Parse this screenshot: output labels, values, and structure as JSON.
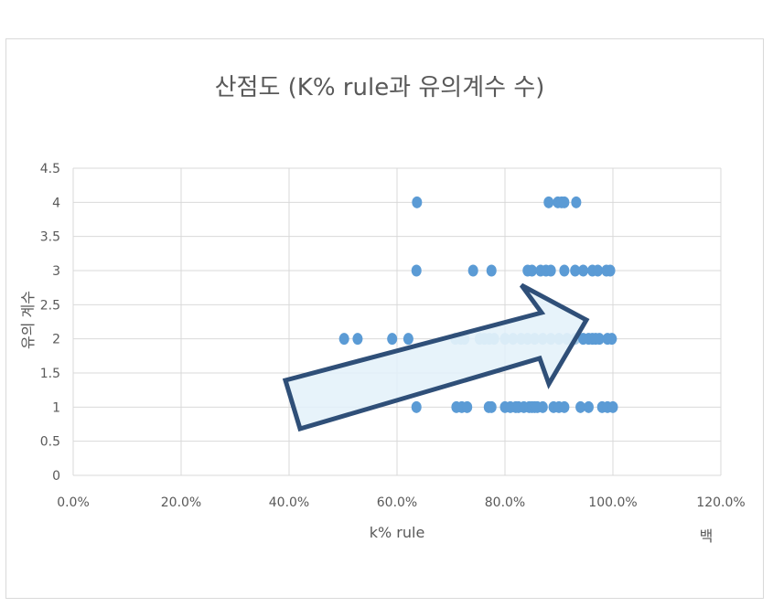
{
  "chart_data": {
    "type": "scatter",
    "title": "산점도 (K% rule과 유의계수 수)",
    "xlabel": "k% rule",
    "ylabel": "유의 계수",
    "extra_label": "백",
    "xlim": [
      0,
      1.2
    ],
    "ylim": [
      0,
      4.5
    ],
    "x_ticks": [
      "0.0%",
      "20.0%",
      "40.0%",
      "60.0%",
      "80.0%",
      "100.0%",
      "120.0%"
    ],
    "y_ticks": [
      "0",
      "0.5",
      "1",
      "1.5",
      "2",
      "2.5",
      "3",
      "3.5",
      "4",
      "4.5"
    ],
    "grid": true,
    "colors": {
      "point": "#5b9bd5",
      "point_light": "#a9cde9",
      "arrow_fill": "#e3f1f9",
      "arrow_stroke": "#2f4f78"
    },
    "series": [
      {
        "values": [
          {
            "x": 0.637,
            "y": 4
          },
          {
            "x": 0.881,
            "y": 4
          },
          {
            "x": 0.898,
            "y": 4
          },
          {
            "x": 0.905,
            "y": 4
          },
          {
            "x": 0.91,
            "y": 4
          },
          {
            "x": 0.932,
            "y": 4
          },
          {
            "x": 0.636,
            "y": 3
          },
          {
            "x": 0.741,
            "y": 3
          },
          {
            "x": 0.775,
            "y": 3
          },
          {
            "x": 0.842,
            "y": 3
          },
          {
            "x": 0.85,
            "y": 3
          },
          {
            "x": 0.866,
            "y": 3
          },
          {
            "x": 0.876,
            "y": 3
          },
          {
            "x": 0.885,
            "y": 3
          },
          {
            "x": 0.91,
            "y": 3
          },
          {
            "x": 0.93,
            "y": 3
          },
          {
            "x": 0.945,
            "y": 3
          },
          {
            "x": 0.962,
            "y": 3
          },
          {
            "x": 0.972,
            "y": 3
          },
          {
            "x": 0.988,
            "y": 3
          },
          {
            "x": 0.995,
            "y": 3
          },
          {
            "x": 0.502,
            "y": 2
          },
          {
            "x": 0.527,
            "y": 2
          },
          {
            "x": 0.591,
            "y": 2
          },
          {
            "x": 0.621,
            "y": 2
          },
          {
            "x": 0.708,
            "y": 2
          },
          {
            "x": 0.718,
            "y": 2
          },
          {
            "x": 0.725,
            "y": 2
          },
          {
            "x": 0.753,
            "y": 2
          },
          {
            "x": 0.762,
            "y": 2
          },
          {
            "x": 0.771,
            "y": 2
          },
          {
            "x": 0.78,
            "y": 2
          },
          {
            "x": 0.8,
            "y": 2
          },
          {
            "x": 0.815,
            "y": 2
          },
          {
            "x": 0.83,
            "y": 2
          },
          {
            "x": 0.842,
            "y": 2
          },
          {
            "x": 0.855,
            "y": 2
          },
          {
            "x": 0.87,
            "y": 2
          },
          {
            "x": 0.885,
            "y": 2
          },
          {
            "x": 0.9,
            "y": 2
          },
          {
            "x": 0.915,
            "y": 2
          },
          {
            "x": 0.93,
            "y": 2
          },
          {
            "x": 0.945,
            "y": 2
          },
          {
            "x": 0.955,
            "y": 2
          },
          {
            "x": 0.962,
            "y": 2
          },
          {
            "x": 0.968,
            "y": 2
          },
          {
            "x": 0.975,
            "y": 2
          },
          {
            "x": 0.99,
            "y": 2
          },
          {
            "x": 0.998,
            "y": 2
          },
          {
            "x": 0.636,
            "y": 1
          },
          {
            "x": 0.71,
            "y": 1
          },
          {
            "x": 0.72,
            "y": 1
          },
          {
            "x": 0.73,
            "y": 1
          },
          {
            "x": 0.77,
            "y": 1
          },
          {
            "x": 0.775,
            "y": 1
          },
          {
            "x": 0.8,
            "y": 1
          },
          {
            "x": 0.81,
            "y": 1
          },
          {
            "x": 0.82,
            "y": 1
          },
          {
            "x": 0.825,
            "y": 1
          },
          {
            "x": 0.835,
            "y": 1
          },
          {
            "x": 0.845,
            "y": 1
          },
          {
            "x": 0.85,
            "y": 1
          },
          {
            "x": 0.855,
            "y": 1
          },
          {
            "x": 0.86,
            "y": 1
          },
          {
            "x": 0.87,
            "y": 1
          },
          {
            "x": 0.89,
            "y": 1
          },
          {
            "x": 0.9,
            "y": 1
          },
          {
            "x": 0.91,
            "y": 1
          },
          {
            "x": 0.94,
            "y": 1
          },
          {
            "x": 0.955,
            "y": 1
          },
          {
            "x": 0.98,
            "y": 1
          },
          {
            "x": 0.99,
            "y": 1
          },
          {
            "x": 1.0,
            "y": 1
          }
        ]
      }
    ],
    "annotation": {
      "type": "arrow",
      "direction": "upper-right"
    }
  }
}
